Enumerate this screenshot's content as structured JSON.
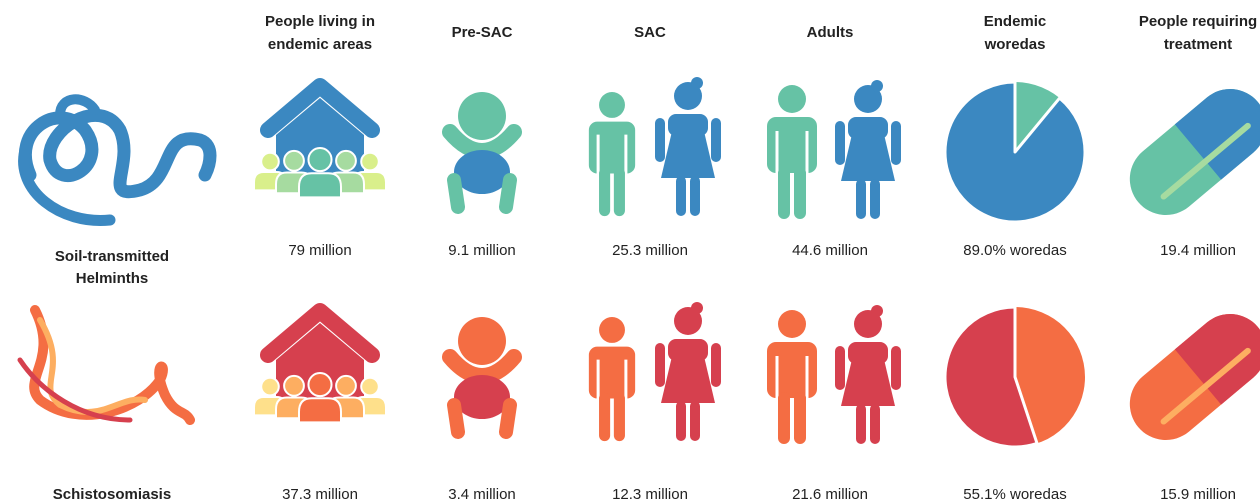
{
  "columns": [
    [
      "People living in",
      "endemic areas"
    ],
    [
      "Pre-SAC"
    ],
    [
      "SAC"
    ],
    [
      "Adults"
    ],
    [
      "Endemic",
      "woredas"
    ],
    [
      "People requiring",
      "treatment"
    ]
  ],
  "rows": [
    {
      "label": [
        "Soil-transmitted",
        "Helminths"
      ],
      "values": [
        "79 million",
        "9.1 million",
        "25.3 million",
        "44.6 million",
        {
          "value": 89.0,
          "label": "89.0% woredas"
        },
        "19.4 million"
      ]
    },
    {
      "label": [
        "Schistosomiasis"
      ],
      "values": [
        "37.3 million",
        "3.4 million",
        "12.3 million",
        "21.6 million",
        {
          "value": 55.1,
          "label": "55.1% woredas"
        },
        "15.9 million"
      ]
    }
  ]
}
